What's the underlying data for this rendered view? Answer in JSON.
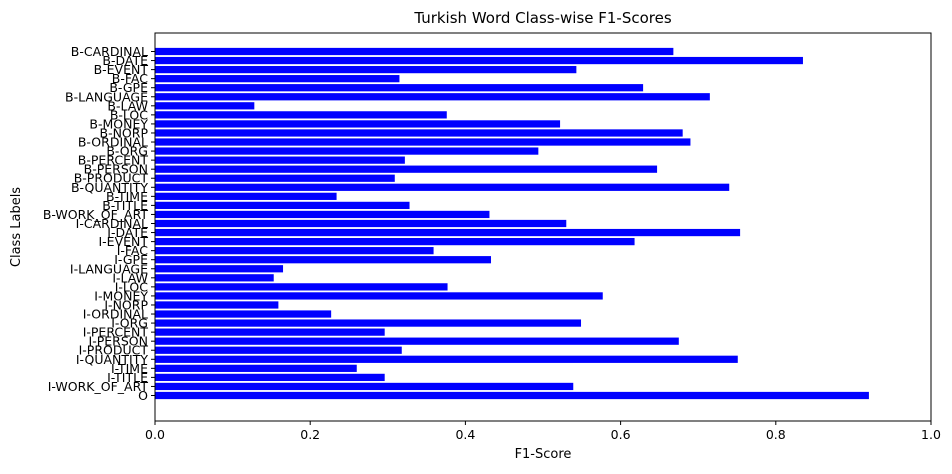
{
  "chart_data": {
    "type": "bar",
    "orientation": "horizontal",
    "title": "Turkish Word Class-wise F1-Scores",
    "xlabel": "F1-Score",
    "ylabel": "Class Labels",
    "xlim": [
      0,
      1.0
    ],
    "xticks": [
      "0.0",
      "0.2",
      "0.4",
      "0.6",
      "0.8",
      "1.0"
    ],
    "grid": false,
    "bar_color": "#0000ff",
    "categories": [
      "B-CARDINAL",
      "B-DATE",
      "B-EVENT",
      "B-FAC",
      "B-GPE",
      "B-LANGUAGE",
      "B-LAW",
      "B-LOC",
      "B-MONEY",
      "B-NORP",
      "B-ORDINAL",
      "B-ORG",
      "B-PERCENT",
      "B-PERSON",
      "B-PRODUCT",
      "B-QUANTITY",
      "B-TIME",
      "B-TITLE",
      "B-WORK_OF_ART",
      "I-CARDINAL",
      "I-DATE",
      "I-EVENT",
      "I-FAC",
      "I-GPE",
      "I-LANGUAGE",
      "I-LAW",
      "I-LOC",
      "I-MONEY",
      "I-NORP",
      "I-ORDINAL",
      "I-ORG",
      "I-PERCENT",
      "I-PERSON",
      "I-PRODUCT",
      "I-QUANTITY",
      "I-TIME",
      "I-TITLE",
      "I-WORK_OF_ART",
      "O"
    ],
    "values": [
      0.668,
      0.835,
      0.543,
      0.315,
      0.629,
      0.715,
      0.128,
      0.376,
      0.522,
      0.68,
      0.69,
      0.494,
      0.322,
      0.647,
      0.309,
      0.74,
      0.234,
      0.328,
      0.431,
      0.53,
      0.754,
      0.618,
      0.359,
      0.433,
      0.165,
      0.153,
      0.377,
      0.577,
      0.159,
      0.227,
      0.549,
      0.296,
      0.675,
      0.318,
      0.751,
      0.26,
      0.296,
      0.539,
      0.92
    ]
  }
}
